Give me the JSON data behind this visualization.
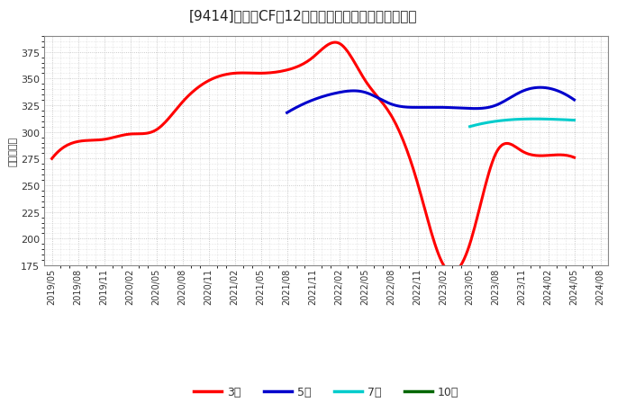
{
  "title": "[9414]　営業CFの12か月移動合計の標準偏差の推移",
  "ylabel": "（百万円）",
  "ylim": [
    175,
    390
  ],
  "yticks": [
    175,
    200,
    225,
    250,
    275,
    300,
    325,
    350,
    375
  ],
  "background_color": "#ffffff",
  "plot_bg_color": "#ffffff",
  "grid_color": "#bbbbbb",
  "series": {
    "3年": {
      "color": "#ff0000",
      "dates": [
        "2019/05",
        "2019/08",
        "2019/11",
        "2020/02",
        "2020/05",
        "2020/08",
        "2020/11",
        "2021/02",
        "2021/05",
        "2021/08",
        "2021/11",
        "2022/02",
        "2022/05",
        "2022/08",
        "2022/11",
        "2023/02",
        "2023/05",
        "2023/08",
        "2023/11",
        "2024/02",
        "2024/05"
      ],
      "values": [
        275,
        291,
        293,
        298,
        302,
        328,
        348,
        355,
        355,
        358,
        370,
        383,
        348,
        315,
        252,
        175,
        195,
        280,
        282,
        278,
        276
      ]
    },
    "5年": {
      "color": "#0000cc",
      "dates": [
        "2021/08",
        "2021/11",
        "2022/02",
        "2022/05",
        "2022/08",
        "2022/11",
        "2023/02",
        "2023/05",
        "2023/08",
        "2023/11",
        "2024/02",
        "2024/05"
      ],
      "values": [
        318,
        330,
        337,
        337,
        326,
        323,
        323,
        322,
        325,
        338,
        341,
        330
      ]
    },
    "7年": {
      "color": "#00cccc",
      "dates": [
        "2023/05",
        "2023/08",
        "2023/11",
        "2024/02",
        "2024/05"
      ],
      "values": [
        305,
        310,
        312,
        312,
        311
      ]
    },
    "10年": {
      "color": "#006600",
      "dates": [],
      "values": []
    }
  },
  "xticks": [
    "2019/05",
    "2019/08",
    "2019/11",
    "2020/02",
    "2020/05",
    "2020/08",
    "2020/11",
    "2021/02",
    "2021/05",
    "2021/08",
    "2021/11",
    "2022/02",
    "2022/05",
    "2022/08",
    "2022/11",
    "2023/02",
    "2023/05",
    "2023/08",
    "2023/11",
    "2024/02",
    "2024/05",
    "2024/08"
  ],
  "legend_entries": [
    "3年",
    "5年",
    "7年",
    "10年"
  ],
  "legend_colors": [
    "#ff0000",
    "#0000cc",
    "#00cccc",
    "#006600"
  ]
}
